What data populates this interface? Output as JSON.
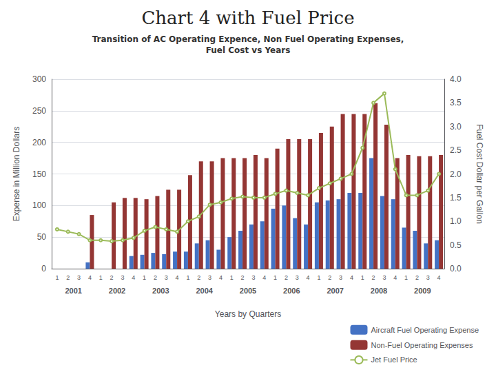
{
  "chart_data": {
    "type": "bar",
    "title": "Chart 4 with Fuel Price",
    "subtitle": "Transition of AC Operating Expence, Non Fuel Operating Expenses,\nFuel Cost vs Years",
    "xlabel": "Years by Quarters",
    "ylabel": "Expense in Million Dollars",
    "y2label": "Fuel Cost Dollar per Gallon",
    "categories": [
      "1",
      "2",
      "3",
      "4",
      "1",
      "2",
      "3",
      "4",
      "1",
      "2",
      "3",
      "4",
      "1",
      "2",
      "3",
      "4",
      "1",
      "2",
      "3",
      "4",
      "1",
      "2",
      "3",
      "4",
      "1",
      "2",
      "3",
      "4",
      "1",
      "2",
      "3",
      "4",
      "1",
      "2",
      "3",
      "4"
    ],
    "groups": [
      "2001",
      "2002",
      "2003",
      "2004",
      "2005",
      "2006",
      "2007",
      "2008",
      "2009"
    ],
    "series": [
      {
        "name": "Aircraft Fuel Operating Expense",
        "type": "bar",
        "color": "#4472C4",
        "values": [
          0,
          0,
          0,
          10,
          0,
          0,
          0,
          20,
          22,
          25,
          23,
          27,
          27,
          40,
          45,
          30,
          50,
          60,
          70,
          75,
          95,
          100,
          80,
          70,
          105,
          108,
          110,
          120,
          120,
          175,
          115,
          110,
          65,
          60,
          40,
          45
        ]
      },
      {
        "name": "Non-Fuel Operating Expenses",
        "type": "bar",
        "color": "#943634",
        "values": [
          0,
          0,
          0,
          85,
          0,
          105,
          112,
          112,
          110,
          115,
          125,
          125,
          148,
          170,
          170,
          175,
          175,
          175,
          180,
          175,
          190,
          205,
          205,
          205,
          215,
          225,
          245,
          245,
          245,
          262,
          228,
          175,
          180,
          178,
          178,
          180
        ]
      },
      {
        "name": "Jet Fuel Price",
        "type": "line",
        "axis": "y2",
        "color": "#9BBB59",
        "values": [
          0.83,
          0.78,
          0.73,
          0.6,
          0.6,
          0.58,
          0.6,
          0.65,
          0.8,
          0.88,
          0.83,
          0.78,
          1.0,
          1.1,
          1.35,
          1.4,
          1.48,
          1.52,
          1.5,
          1.5,
          1.58,
          1.65,
          1.6,
          1.55,
          1.7,
          1.8,
          1.9,
          2.0,
          2.55,
          3.5,
          3.7,
          2.1,
          1.55,
          1.55,
          1.65,
          2.0
        ]
      }
    ],
    "ylim": [
      0,
      300
    ],
    "yticks": [
      0,
      50,
      100,
      150,
      200,
      250,
      300
    ],
    "y2lim": [
      0,
      4
    ],
    "y2ticks": [
      {
        "value": 0,
        "label": "0.0"
      },
      0.5,
      {
        "value": 1,
        "label": "1.0"
      },
      1.5,
      {
        "value": 2,
        "label": "2.0"
      },
      2.5,
      {
        "value": 3,
        "label": "3.0"
      },
      3.5,
      {
        "value": 4,
        "label": "4.0"
      }
    ],
    "grid": true,
    "legend": "lower right"
  }
}
